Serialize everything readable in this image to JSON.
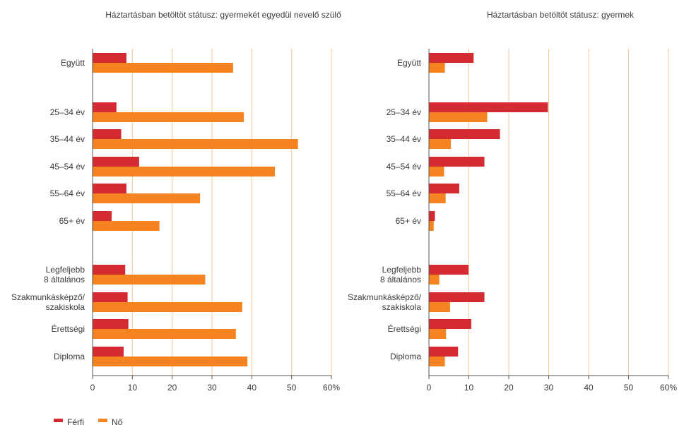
{
  "colors": {
    "male": "#d42a32",
    "female": "#f58420",
    "grid": "#f7c896",
    "axis": "#555555"
  },
  "chart_data": [
    {
      "type": "bar",
      "orientation": "horizontal",
      "title": "Háztartásban betöltöt státusz: gyermekét egyedül nevelő szülő",
      "categories": [
        "Együtt",
        "25–34 év",
        "35–44 év",
        "45–54 év",
        "55–64 év",
        "65+ év",
        "Legfeljebb 8 általános",
        "Szakmunkásképző/ szakiskola",
        "Érettségi",
        "Diploma"
      ],
      "category_lines": [
        [
          "Együtt"
        ],
        [
          "25–34 év"
        ],
        [
          "35–44 év"
        ],
        [
          "45–54 év"
        ],
        [
          "55–64 év"
        ],
        [
          "65+ év"
        ],
        [
          "Legfeljebb",
          "8 általános"
        ],
        [
          "Szakmunkásképző/",
          "szakiskola"
        ],
        [
          "Érettségi"
        ],
        [
          "Diploma"
        ]
      ],
      "series": [
        {
          "name": "Férfi",
          "values": [
            8.5,
            6,
            7.2,
            11.7,
            8.5,
            4.8,
            8.2,
            8.8,
            9,
            7.8
          ]
        },
        {
          "name": "Nő",
          "values": [
            35.3,
            38,
            51.6,
            45.8,
            27,
            16.8,
            28.3,
            37.6,
            36,
            38.9
          ]
        }
      ],
      "xlim": [
        0,
        60
      ],
      "xticks": [
        "0",
        "10",
        "20",
        "30",
        "40",
        "50",
        "60%"
      ],
      "grid": true
    },
    {
      "type": "bar",
      "orientation": "horizontal",
      "title": "Háztartásban betöltöt státusz: gyermek",
      "categories": [
        "Együtt",
        "25–34 év",
        "35–44 év",
        "45–54 év",
        "55–64 év",
        "65+ év",
        "Legfeljebb 8 általános",
        "Szakmunkásképző/ szakiskola",
        "Érettségi",
        "Diploma"
      ],
      "category_lines": [
        [
          "Együtt"
        ],
        [
          "25–34 év"
        ],
        [
          "35–44 év"
        ],
        [
          "45–54 év"
        ],
        [
          "55–64 év"
        ],
        [
          "65+ év"
        ],
        [
          "Legfeljebb",
          "8 általános"
        ],
        [
          "Szakmunkásképző/",
          "szakiskola"
        ],
        [
          "Érettségi"
        ],
        [
          "Diploma"
        ]
      ],
      "series": [
        {
          "name": "Férfi",
          "values": [
            11.2,
            29.8,
            17.8,
            13.9,
            7.6,
            1.5,
            9.9,
            13.9,
            10.6,
            7.3
          ]
        },
        {
          "name": "Nő",
          "values": [
            4,
            14.6,
            5.5,
            3.8,
            4.2,
            1.2,
            2.6,
            5.3,
            4.3,
            4
          ]
        }
      ],
      "xlim": [
        0,
        60
      ],
      "xticks": [
        "0",
        "10",
        "20",
        "30",
        "40",
        "50",
        "60%"
      ],
      "grid": true
    }
  ],
  "legend": [
    {
      "label": "Férfi",
      "color": "#d42a32"
    },
    {
      "label": "Nő",
      "color": "#f58420"
    }
  ]
}
